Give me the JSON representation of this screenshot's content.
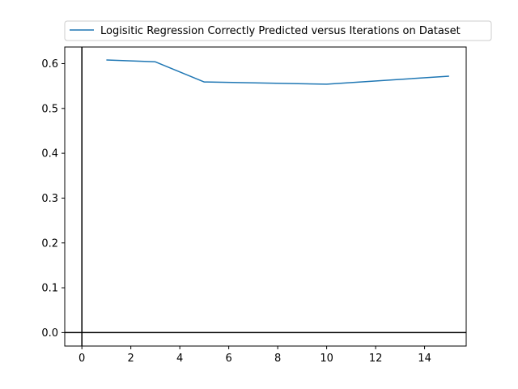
{
  "chart_data": {
    "type": "line",
    "title": "",
    "xlabel": "",
    "ylabel": "",
    "xlim": [
      -0.7,
      15.7
    ],
    "ylim": [
      -0.03,
      0.637
    ],
    "xticks": [
      0,
      2,
      4,
      6,
      8,
      10,
      12,
      14
    ],
    "yticks": [
      0.0,
      0.1,
      0.2,
      0.3,
      0.4,
      0.5,
      0.6
    ],
    "xtick_labels": [
      "0",
      "2",
      "4",
      "6",
      "8",
      "10",
      "12",
      "14"
    ],
    "ytick_labels": [
      "0.0",
      "0.1",
      "0.2",
      "0.3",
      "0.4",
      "0.5",
      "0.6"
    ],
    "grid": false,
    "reference_lines": {
      "x": 0,
      "y": 0,
      "color": "#000000"
    },
    "legend_position": "top, above plot",
    "series": [
      {
        "name": "Logisitic Regression Correctly Predicted versus Iterations on Dataset",
        "color": "#1f77b4",
        "x": [
          1,
          3,
          5,
          10,
          15
        ],
        "y": [
          0.608,
          0.604,
          0.559,
          0.554,
          0.572
        ]
      }
    ]
  }
}
